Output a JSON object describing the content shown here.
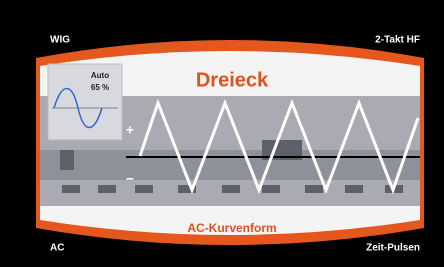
{
  "corners": {
    "top_left": "WIG",
    "top_right": "2-Takt HF",
    "bottom_left": "AC",
    "bottom_right": "Zeit-Pulsen"
  },
  "title": "Dreieck",
  "inset": {
    "mode": "Auto",
    "value": "65 %"
  },
  "signs": {
    "plus": "+",
    "minus": "−"
  },
  "footer": "AC-Kurvenform"
}
